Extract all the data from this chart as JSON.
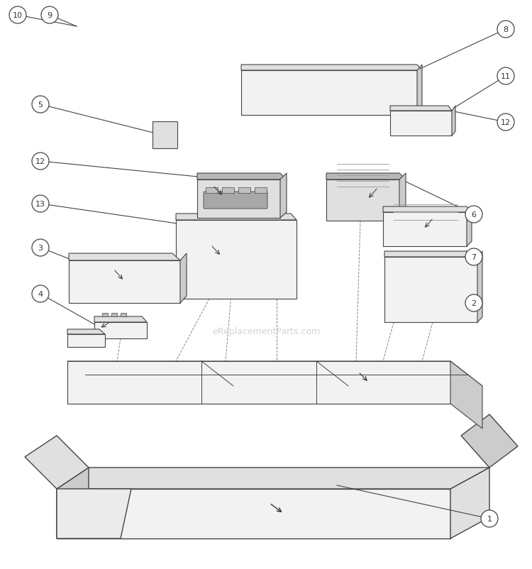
{
  "bg_color": "#ffffff",
  "line_color": "#444444",
  "fill_light": "#f2f2f2",
  "fill_mid": "#e0e0e0",
  "fill_dark": "#cccccc",
  "fill_darker": "#b8b8b8",
  "text_color": "#333333",
  "watermark": "eReplacementParts.com",
  "watermark_color": "#cccccc",
  "dpi": 100,
  "figw": 7.5,
  "figh": 8.03
}
